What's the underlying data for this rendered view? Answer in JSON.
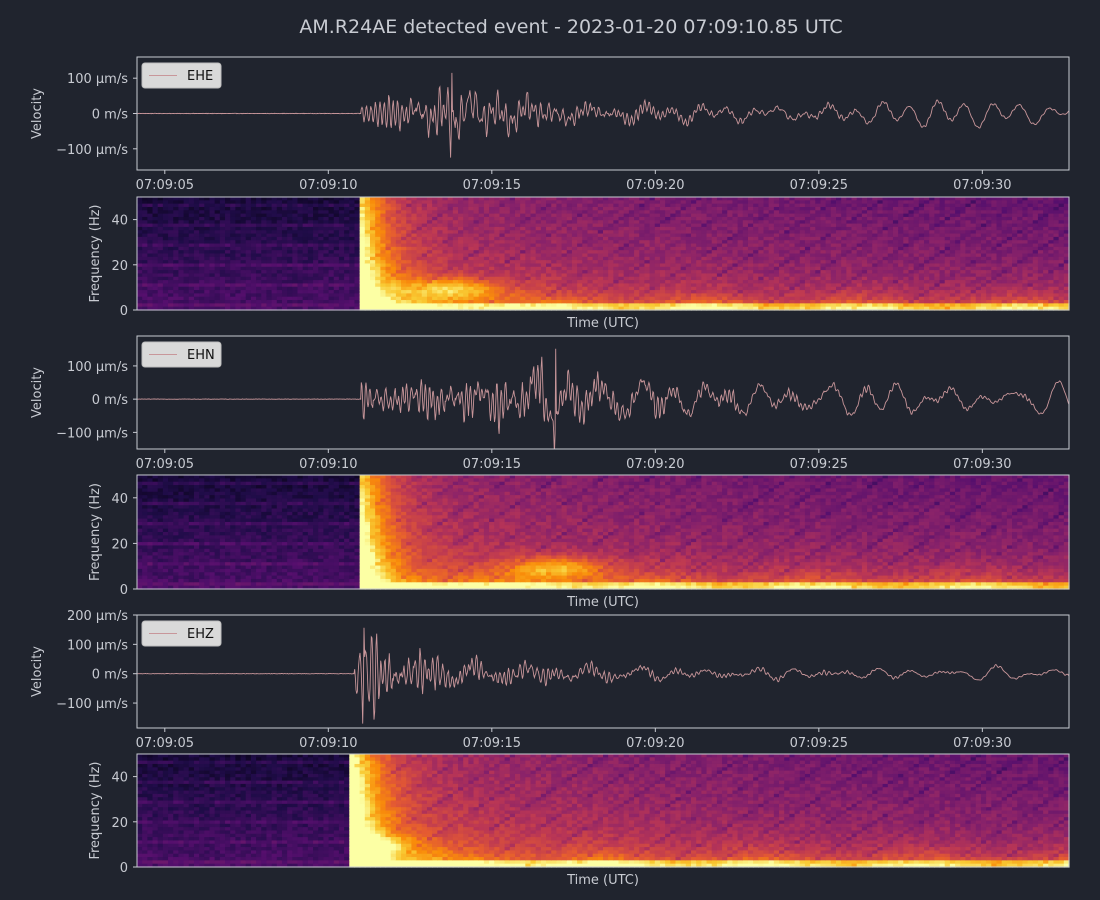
{
  "figure": {
    "title": "AM.R24AE detected event - 2023-01-20 07:09:10.85 UTC"
  },
  "colors": {
    "background": "#20242e",
    "frame": "#c8cbd2",
    "text": "#c8cbd2",
    "trace": "#c8969a",
    "legend_bg": "#d9d9d9"
  },
  "chart_data": [
    {
      "type": "line",
      "channel": "EHE",
      "legend": "EHE",
      "legend_placement": "top-left",
      "ylabel": "Velocity",
      "xlabel": "",
      "x_start": "07:09:04.15",
      "x_end": "07:09:32.65",
      "xticks": [
        "07:09:05",
        "07:09:10",
        "07:09:15",
        "07:09:20",
        "07:09:25",
        "07:09:30"
      ],
      "ylim_um_s": [
        -160,
        160
      ],
      "yticks": [
        {
          "value": 100,
          "label": "100 µm/s"
        },
        {
          "value": 0,
          "label": "0 m/s"
        },
        {
          "value": -100,
          "label": "−100 µm/s"
        }
      ],
      "onset_s": "07:09:11.0",
      "peak_amplitude_um_s": 125,
      "peak_time": "07:09:13.8",
      "coda_amplitude_um_s": 28,
      "grid": false
    },
    {
      "type": "heatmap",
      "channel": "EHE",
      "ylabel": "Frequency (Hz)",
      "xlabel": "Time (UTC)",
      "ylim_hz": [
        0,
        50
      ],
      "yticks": [
        {
          "value": 40,
          "label": "40"
        },
        {
          "value": 20,
          "label": "20"
        },
        {
          "value": 0,
          "label": "0"
        }
      ],
      "colormap": "inferno",
      "onset_s": "07:09:10.9"
    },
    {
      "type": "line",
      "channel": "EHN",
      "legend": "EHN",
      "legend_placement": "top-left",
      "ylabel": "Velocity",
      "xlabel": "",
      "x_start": "07:09:04.15",
      "x_end": "07:09:32.65",
      "xticks": [
        "07:09:05",
        "07:09:10",
        "07:09:15",
        "07:09:20",
        "07:09:25",
        "07:09:30"
      ],
      "ylim_um_s": [
        -150,
        190
      ],
      "yticks": [
        {
          "value": 100,
          "label": "100 µm/s"
        },
        {
          "value": 0,
          "label": "0 m/s"
        },
        {
          "value": -100,
          "label": "−100 µm/s"
        }
      ],
      "onset_s": "07:09:11.0",
      "peak_amplitude_um_s": 165,
      "peak_time": "07:09:17.0",
      "coda_amplitude_um_s": 40,
      "grid": false
    },
    {
      "type": "heatmap",
      "channel": "EHN",
      "ylabel": "Frequency (Hz)",
      "xlabel": "Time (UTC)",
      "ylim_hz": [
        0,
        50
      ],
      "yticks": [
        {
          "value": 40,
          "label": "40"
        },
        {
          "value": 20,
          "label": "20"
        },
        {
          "value": 0,
          "label": "0"
        }
      ],
      "colormap": "inferno",
      "onset_s": "07:09:10.9"
    },
    {
      "type": "line",
      "channel": "EHZ",
      "legend": "EHZ",
      "legend_placement": "top-left",
      "ylabel": "Velocity",
      "xlabel": "",
      "x_start": "07:09:04.15",
      "x_end": "07:09:32.65",
      "xticks": [
        "07:09:05",
        "07:09:10",
        "07:09:15",
        "07:09:20",
        "07:09:25",
        "07:09:30"
      ],
      "ylim_um_s": [
        -185,
        200
      ],
      "yticks": [
        {
          "value": 200,
          "label": "200 µm/s"
        },
        {
          "value": 100,
          "label": "100 µm/s"
        },
        {
          "value": 0,
          "label": "0 m/s"
        },
        {
          "value": -100,
          "label": "−100 µm/s"
        }
      ],
      "onset_s": "07:09:10.8",
      "peak_amplitude_um_s": 170,
      "peak_time": "07:09:10.9",
      "coda_amplitude_um_s": 22,
      "grid": false
    },
    {
      "type": "heatmap",
      "channel": "EHZ",
      "ylabel": "Frequency (Hz)",
      "xlabel": "Time (UTC)",
      "ylim_hz": [
        0,
        50
      ],
      "yticks": [
        {
          "value": 40,
          "label": "40"
        },
        {
          "value": 20,
          "label": "20"
        },
        {
          "value": 0,
          "label": "0"
        }
      ],
      "colormap": "inferno",
      "onset_s": "07:09:10.6"
    }
  ]
}
